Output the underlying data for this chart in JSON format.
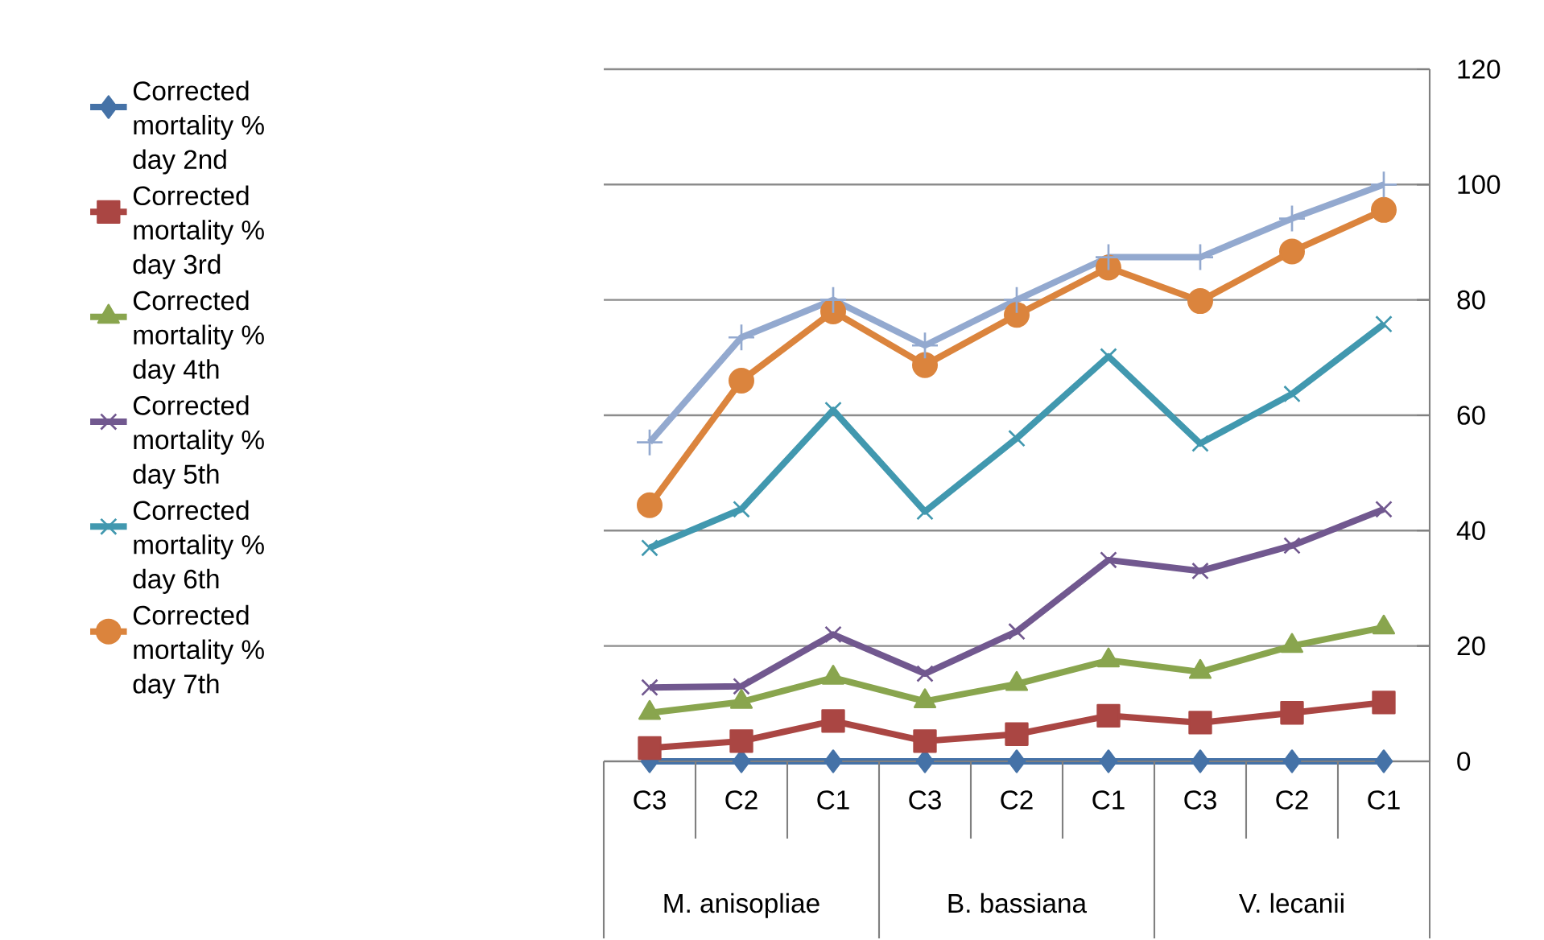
{
  "chart_data": {
    "type": "line",
    "categories": [
      "C3",
      "C2",
      "C1",
      "C3",
      "C2",
      "C1",
      "C3",
      "C2",
      "C1"
    ],
    "annotations": [
      "M. anisopliae",
      "B. bassiana",
      "V. lecanii"
    ],
    "ylim": [
      0,
      120
    ],
    "yticks": [
      0,
      20,
      40,
      60,
      80,
      100,
      120
    ],
    "grid": "y",
    "legend": "left",
    "line_style": "solid",
    "series": [
      {
        "name": "Corrected mortality % day 2nd",
        "color": "#4572a7",
        "marker": "diamond",
        "values": [
          0,
          0,
          0,
          0,
          0,
          0,
          0,
          0,
          0
        ]
      },
      {
        "name": "Corrected mortality % day 3rd",
        "color": "#aa4643",
        "marker": "square",
        "values": [
          2.3,
          3.5,
          7,
          3.5,
          4.7,
          7.9,
          6.7,
          8.4,
          10.2
        ]
      },
      {
        "name": "Corrected mortality % day 4th",
        "color": "#89a54e",
        "marker": "triangle",
        "values": [
          8.4,
          10.3,
          14.5,
          10.4,
          13.4,
          17.5,
          15.5,
          20,
          23.2
        ]
      },
      {
        "name": "Corrected mortality % day 5th",
        "color": "#71588f",
        "marker": "cross",
        "values": [
          12.8,
          13,
          22,
          15.2,
          22.5,
          34.9,
          33,
          37.4,
          43.7
        ]
      },
      {
        "name": "Corrected mortality % day 6th",
        "color": "#4198af",
        "marker": "cross",
        "values": [
          37,
          43.7,
          60.9,
          43.3,
          56,
          70.2,
          55.1,
          63.7,
          75.8
        ]
      },
      {
        "name": "Corrected mortality % day 7th",
        "color": "#db843d",
        "marker": "circle",
        "values": [
          44.4,
          66,
          78,
          68.7,
          77.4,
          85.6,
          79.8,
          88.4,
          95.6
        ]
      },
      {
        "color": "#93a9cf",
        "marker": "plus",
        "values": [
          55.3,
          73.5,
          80,
          72.1,
          80,
          87.4,
          87.4,
          94.1,
          100
        ]
      }
    ]
  }
}
